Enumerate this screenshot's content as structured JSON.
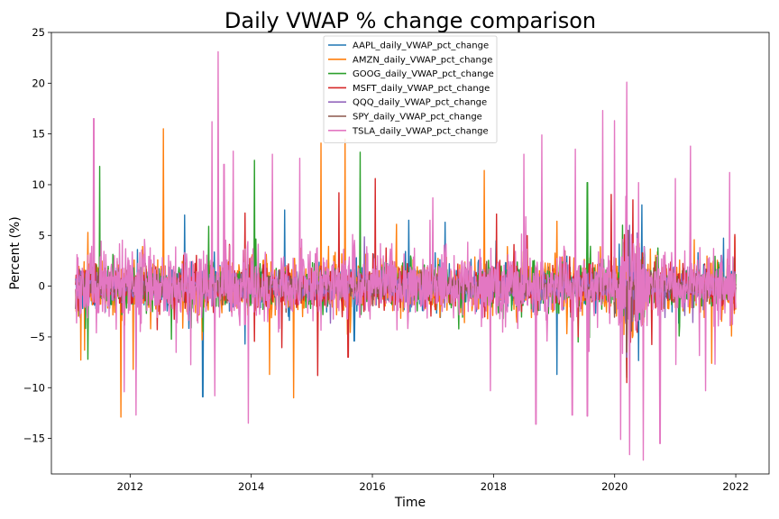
{
  "chart_data": {
    "type": "line",
    "title": "Daily VWAP % change comparison",
    "xlabel": "Time",
    "ylabel": "Percent (%)",
    "xlim": [
      2010.7,
      2022.55
    ],
    "ylim": [
      -18.5,
      25
    ],
    "x_ticks": [
      2012,
      2014,
      2016,
      2018,
      2020,
      2022
    ],
    "x_tick_labels": [
      "2012",
      "2014",
      "2016",
      "2018",
      "2020",
      "2022"
    ],
    "y_ticks": [
      -15,
      -10,
      -5,
      0,
      5,
      10,
      15,
      20,
      25
    ],
    "y_tick_labels": [
      "−15",
      "−10",
      "−5",
      "0",
      "5",
      "10",
      "15",
      "20",
      "25"
    ],
    "grid": false,
    "legend_placement": "top-center",
    "x_range": [
      2011.1,
      2022.0
    ],
    "series": [
      {
        "name": "AAPL_daily_VWAP_pct_change",
        "color": "#1f77b4",
        "base_amplitude": 1.6,
        "spikes": [
          [
            2013.2,
            -10.9
          ],
          [
            2012.9,
            7.0
          ],
          [
            2014.55,
            7.5
          ],
          [
            2016.6,
            6.5
          ],
          [
            2017.2,
            6.3
          ],
          [
            2019.05,
            -8.7
          ],
          [
            2020.2,
            -9.0
          ],
          [
            2020.45,
            8.0
          ],
          [
            2015.7,
            -5.4
          ],
          [
            2013.9,
            -5.7
          ]
        ]
      },
      {
        "name": "AMZN_daily_VWAP_pct_change",
        "color": "#ff7f0e",
        "base_amplitude": 2.0,
        "spikes": [
          [
            2011.85,
            -12.9
          ],
          [
            2012.55,
            15.5
          ],
          [
            2015.15,
            14.1
          ],
          [
            2015.55,
            14.5
          ],
          [
            2017.85,
            11.4
          ],
          [
            2014.7,
            -11.0
          ],
          [
            2014.3,
            -8.7
          ],
          [
            2016.4,
            6.1
          ],
          [
            2019.05,
            6.4
          ],
          [
            2021.6,
            -7.6
          ],
          [
            2012.05,
            -8.2
          ],
          [
            2011.25,
            -6.3
          ]
        ]
      },
      {
        "name": "GOOG_daily_VWAP_pct_change",
        "color": "#2ca02c",
        "base_amplitude": 1.6,
        "spikes": [
          [
            2011.5,
            11.8
          ],
          [
            2014.05,
            12.4
          ],
          [
            2015.8,
            13.2
          ],
          [
            2019.55,
            10.2
          ],
          [
            2011.3,
            -7.2
          ],
          [
            2012.1,
            -8.0
          ],
          [
            2019.4,
            -5.5
          ],
          [
            2020.2,
            -9.0
          ],
          [
            2013.3,
            5.9
          ]
        ]
      },
      {
        "name": "MSFT_daily_VWAP_pct_change",
        "color": "#d62728",
        "base_amplitude": 1.5,
        "spikes": [
          [
            2015.1,
            -8.8
          ],
          [
            2015.45,
            9.2
          ],
          [
            2016.05,
            10.6
          ],
          [
            2018.05,
            7.1
          ],
          [
            2013.9,
            7.2
          ],
          [
            2020.2,
            -9.5
          ],
          [
            2020.3,
            8.5
          ],
          [
            2015.6,
            -7.0
          ]
        ]
      },
      {
        "name": "QQQ_daily_VWAP_pct_change",
        "color": "#9467bd",
        "base_amplitude": 1.0,
        "spikes": [
          [
            2020.2,
            -7.0
          ],
          [
            2020.25,
            6.0
          ]
        ]
      },
      {
        "name": "SPY_daily_VWAP_pct_change",
        "color": "#8c564b",
        "base_amplitude": 0.8,
        "spikes": [
          [
            2020.2,
            -6.5
          ],
          [
            2020.22,
            5.5
          ]
        ]
      },
      {
        "name": "TSLA_daily_VWAP_pct_change",
        "color": "#e377c2",
        "base_amplitude": 2.8,
        "spikes": [
          [
            2011.4,
            16.5
          ],
          [
            2013.45,
            23.1
          ],
          [
            2013.35,
            16.2
          ],
          [
            2013.55,
            12.0
          ],
          [
            2013.7,
            13.3
          ],
          [
            2013.95,
            -13.5
          ],
          [
            2014.35,
            13.0
          ],
          [
            2014.8,
            12.6
          ],
          [
            2020.2,
            20.1
          ],
          [
            2020.0,
            16.3
          ],
          [
            2019.8,
            17.3
          ],
          [
            2018.8,
            14.9
          ],
          [
            2018.5,
            13.0
          ],
          [
            2019.35,
            13.5
          ],
          [
            2021.25,
            13.8
          ],
          [
            2019.3,
            -12.7
          ],
          [
            2020.1,
            -15.1
          ],
          [
            2020.25,
            -16.6
          ],
          [
            2020.75,
            -15.5
          ],
          [
            2018.7,
            -13.6
          ],
          [
            2011.9,
            -10.4
          ],
          [
            2012.1,
            -12.7
          ],
          [
            2013.4,
            -10.8
          ],
          [
            2017.95,
            -10.3
          ],
          [
            2019.55,
            -12.8
          ],
          [
            2021.5,
            -10.3
          ],
          [
            2017.0,
            8.7
          ],
          [
            2016.95,
            6.5
          ],
          [
            2021.0,
            10.6
          ],
          [
            2021.9,
            11.2
          ]
        ]
      }
    ]
  }
}
